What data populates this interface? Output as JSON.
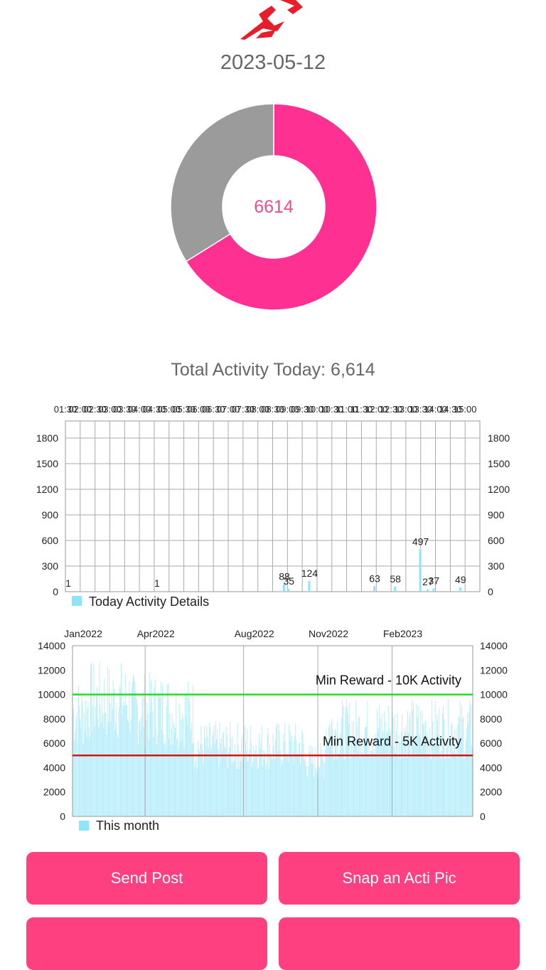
{
  "header": {
    "date": "2023-05-12",
    "logo_icon": "runner-logo-icon"
  },
  "donut": {
    "center_value": "6614",
    "values": [
      6614,
      3386
    ],
    "colors": [
      "#fe3092",
      "#9b9b9b"
    ]
  },
  "summary": {
    "total_text": "Total Activity Today: 6,614"
  },
  "chart_data": [
    {
      "type": "bar",
      "legend": "Today Activity Details",
      "color": "#8ee4f8",
      "ylim": [
        0,
        2000
      ],
      "yticks": [
        0,
        300,
        600,
        900,
        1200,
        1500,
        1800
      ],
      "xtick_labels": [
        "01:30",
        "02:00",
        "02:30",
        "03:00",
        "03:30",
        "04:00",
        "04:30",
        "05:00",
        "05:30",
        "06:00",
        "06:30",
        "07:00",
        "07:30",
        "08:00",
        "08:30",
        "09:00",
        "09:30",
        "10:00",
        "10:30",
        "11:00",
        "11:30",
        "12:00",
        "12:30",
        "13:00",
        "13:30",
        "14:00",
        "14:30",
        "15:00"
      ],
      "bars": [
        {
          "x": 0,
          "y": 1
        },
        {
          "x": 6,
          "y": 1
        },
        {
          "x": 14.6,
          "y": 88
        },
        {
          "x": 14.9,
          "y": 35
        },
        {
          "x": 16.3,
          "y": 124
        },
        {
          "x": 20.7,
          "y": 63
        },
        {
          "x": 22.1,
          "y": 58
        },
        {
          "x": 23.8,
          "y": 497
        },
        {
          "x": 24.3,
          "y": 27
        },
        {
          "x": 24.7,
          "y": 37
        },
        {
          "x": 26.5,
          "y": 49
        }
      ],
      "grid": true
    },
    {
      "type": "bar",
      "legend": "This month",
      "color": "#8ee4f8",
      "ylim": [
        0,
        14000
      ],
      "yticks": [
        0,
        2000,
        4000,
        6000,
        8000,
        10000,
        12000,
        14000
      ],
      "xtick_labels": [
        "Jan2022",
        "Apr2022",
        "Aug2022",
        "Nov2022",
        "Feb2023"
      ],
      "x_start": "2022-01-01",
      "x_end": "2023-05-12",
      "thresholds": [
        {
          "label": "Min Reward - 10K Activity",
          "value": 10000,
          "color": "#22dd22"
        },
        {
          "label": "Min Reward - 5K Activity",
          "value": 5000,
          "color": "#dd1111"
        }
      ],
      "segments": [
        {
          "from": "2022-01-01",
          "to": "2022-01-20",
          "avg": 8500
        },
        {
          "from": "2022-01-20",
          "to": "2022-03-15",
          "avg": 9500
        },
        {
          "from": "2022-03-15",
          "to": "2022-04-30",
          "avg": 8800
        },
        {
          "from": "2022-04-30",
          "to": "2022-06-01",
          "avg": 8500
        },
        {
          "from": "2022-06-01",
          "to": "2022-10-15",
          "avg": 5800
        },
        {
          "from": "2022-10-15",
          "to": "2022-11-10",
          "avg": 4500
        },
        {
          "from": "2022-11-10",
          "to": "2023-05-12",
          "avg": 7200
        }
      ],
      "grid": true
    }
  ],
  "buttons": [
    {
      "label": "Send Post"
    },
    {
      "label": "Snap an Acti Pic"
    },
    {
      "label": ""
    },
    {
      "label": ""
    }
  ]
}
